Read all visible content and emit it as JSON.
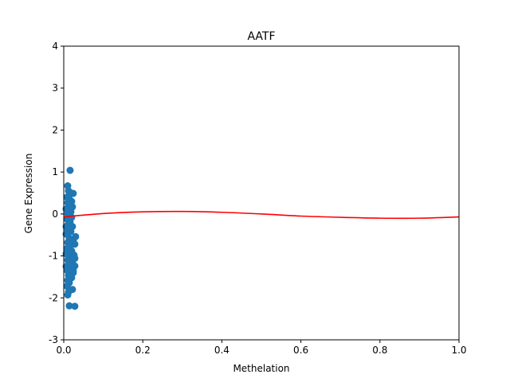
{
  "chart_data": {
    "type": "scatter",
    "title": "AATF",
    "xlabel": "Methelation",
    "ylabel": "Gene Expression",
    "xlim": [
      0.0,
      1.0
    ],
    "ylim": [
      -3,
      4
    ],
    "x_ticks": [
      "0.0",
      "0.2",
      "0.4",
      "0.6",
      "0.8",
      "1.0"
    ],
    "y_ticks": [
      "-3",
      "-2",
      "-1",
      "0",
      "1",
      "2",
      "3",
      "4"
    ],
    "grid": false,
    "legend": "none",
    "series": [
      {
        "kind": "scatter",
        "color": "#1f77b4",
        "points": [
          [
            0.016,
            1.04
          ],
          [
            0.01,
            0.67
          ],
          [
            0.012,
            0.55
          ],
          [
            0.018,
            0.5
          ],
          [
            0.024,
            0.49
          ],
          [
            0.008,
            0.4
          ],
          [
            0.014,
            0.36
          ],
          [
            0.02,
            0.3
          ],
          [
            0.01,
            0.27
          ],
          [
            0.016,
            0.22
          ],
          [
            0.022,
            0.17
          ],
          [
            0.006,
            0.12
          ],
          [
            0.012,
            0.08
          ],
          [
            0.018,
            0.05
          ],
          [
            0.01,
            0.0
          ],
          [
            0.014,
            -0.04
          ],
          [
            0.02,
            -0.08
          ],
          [
            0.008,
            -0.12
          ],
          [
            0.016,
            -0.18
          ],
          [
            0.012,
            -0.24
          ],
          [
            0.022,
            -0.3
          ],
          [
            0.01,
            -0.36
          ],
          [
            0.018,
            -0.42
          ],
          [
            0.006,
            -0.48
          ],
          [
            0.03,
            -0.54
          ],
          [
            0.014,
            -0.58
          ],
          [
            0.024,
            -0.63
          ],
          [
            0.01,
            -0.68
          ],
          [
            0.028,
            -0.72
          ],
          [
            0.016,
            -0.76
          ],
          [
            0.008,
            -0.82
          ],
          [
            0.02,
            -0.88
          ],
          [
            0.012,
            -0.94
          ],
          [
            0.026,
            -0.98
          ],
          [
            0.016,
            -1.02
          ],
          [
            0.028,
            -1.06
          ],
          [
            0.01,
            -1.1
          ],
          [
            0.022,
            -1.14
          ],
          [
            0.014,
            -1.18
          ],
          [
            0.028,
            -1.24
          ],
          [
            0.018,
            -1.28
          ],
          [
            0.008,
            -1.34
          ],
          [
            0.024,
            -1.4
          ],
          [
            0.012,
            -1.46
          ],
          [
            0.02,
            -1.52
          ],
          [
            0.01,
            -1.58
          ],
          [
            0.014,
            -1.64
          ],
          [
            0.008,
            -1.72
          ],
          [
            0.022,
            -1.8
          ],
          [
            0.012,
            -1.86
          ],
          [
            0.01,
            -1.93
          ],
          [
            0.014,
            -2.19
          ],
          [
            0.028,
            -2.2
          ],
          [
            0.006,
            -0.95
          ],
          [
            0.006,
            -0.3
          ],
          [
            0.006,
            -1.25
          ],
          [
            0.02,
            -0.62
          ],
          [
            0.018,
            0.13
          ],
          [
            0.024,
            -1.35
          ],
          [
            0.016,
            -1.48
          ]
        ]
      },
      {
        "kind": "line",
        "color": "#ff0000",
        "points": [
          [
            0.0,
            -0.07
          ],
          [
            0.1,
            0.01
          ],
          [
            0.2,
            0.05
          ],
          [
            0.3,
            0.06
          ],
          [
            0.4,
            0.04
          ],
          [
            0.5,
            0.0
          ],
          [
            0.6,
            -0.05
          ],
          [
            0.7,
            -0.08
          ],
          [
            0.8,
            -0.1
          ],
          [
            0.9,
            -0.1
          ],
          [
            1.0,
            -0.07
          ]
        ]
      }
    ]
  }
}
